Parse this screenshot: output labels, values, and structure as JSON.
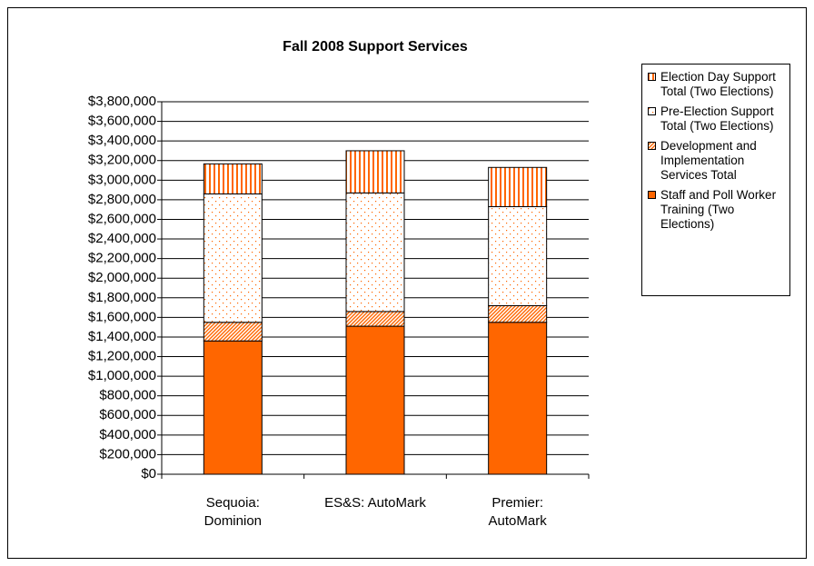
{
  "chart_data": {
    "type": "stacked_bar",
    "title": "Fall 2008 Support Services",
    "categories": [
      "Sequoia: Dominion",
      "ES&S: AutoMark",
      "Premier: AutoMark"
    ],
    "series": [
      {
        "name": "Staff and Poll Worker Training (Two Elections)",
        "color": "#ff6600",
        "pattern": "solid",
        "values": [
          1360000,
          1510000,
          1550000
        ]
      },
      {
        "name": "Development and Implementation Services Total",
        "color": "#ff6600",
        "pattern": "diagonal",
        "values": [
          190000,
          150000,
          170000
        ]
      },
      {
        "name": "Pre-Election Support Total (Two Elections)",
        "color": "#ff6600",
        "pattern": "dots",
        "values": [
          1310000,
          1210000,
          1010000
        ]
      },
      {
        "name": "Election Day Support Total (Two Elections)",
        "color": "#ff6600",
        "pattern": "vertical",
        "values": [
          306000,
          430000,
          400000
        ]
      }
    ],
    "ylim": [
      0,
      3800000
    ],
    "yticks": [
      {
        "value": 0,
        "label": "$0"
      },
      {
        "value": 200000,
        "label": "$200,000"
      },
      {
        "value": 400000,
        "label": "$400,000"
      },
      {
        "value": 600000,
        "label": "$600,000"
      },
      {
        "value": 800000,
        "label": "$800,000"
      },
      {
        "value": 1000000,
        "label": "$1,000,000"
      },
      {
        "value": 1200000,
        "label": "$1,200,000"
      },
      {
        "value": 1400000,
        "label": "$1,400,000"
      },
      {
        "value": 1600000,
        "label": "$1,600,000"
      },
      {
        "value": 1800000,
        "label": "$1,800,000"
      },
      {
        "value": 2000000,
        "label": "$2,000,000"
      },
      {
        "value": 2200000,
        "label": "$2,200,000"
      },
      {
        "value": 2400000,
        "label": "$2,400,000"
      },
      {
        "value": 2600000,
        "label": "$2,600,000"
      },
      {
        "value": 2800000,
        "label": "$2,800,000"
      },
      {
        "value": 3000000,
        "label": "$3,000,000"
      },
      {
        "value": 3200000,
        "label": "$3,200,000"
      },
      {
        "value": 3400000,
        "label": "$3,400,000"
      },
      {
        "value": 3600000,
        "label": "$3,600,000"
      },
      {
        "value": 3800000,
        "label": "$3,800,000"
      }
    ],
    "grid": true,
    "legend": "right"
  }
}
